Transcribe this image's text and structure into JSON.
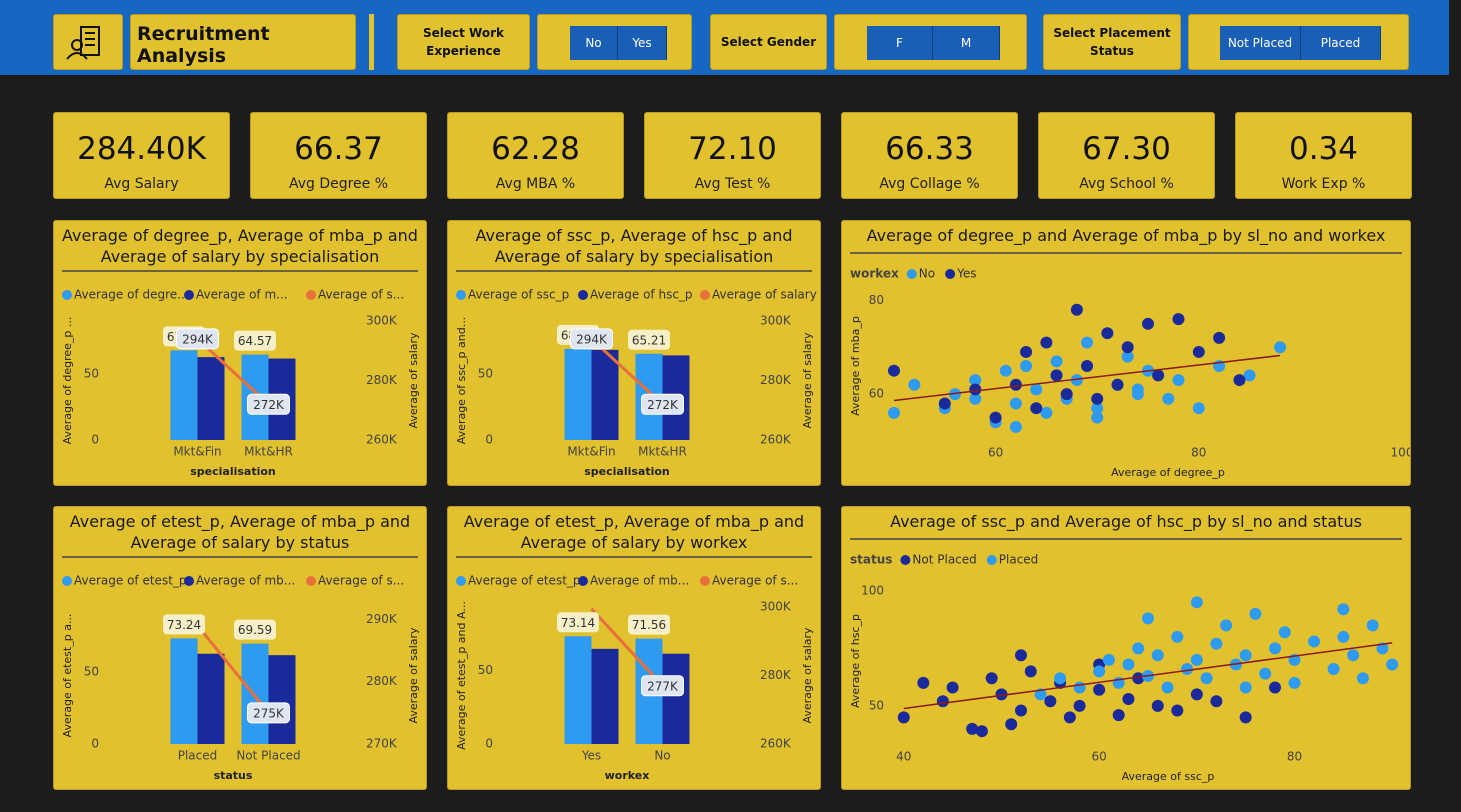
{
  "header": {
    "title": "Recruitment Analysis"
  },
  "slicers": [
    {
      "label": "Select Work Experience",
      "options": [
        "No",
        "Yes"
      ]
    },
    {
      "label": "Select Gender",
      "options": [
        "F",
        "M"
      ]
    },
    {
      "label": "Select Placement Status",
      "options": [
        "Not Placed",
        "Placed"
      ]
    }
  ],
  "kpis": [
    {
      "value": "284.40K",
      "label": "Avg Salary"
    },
    {
      "value": "66.37",
      "label": "Avg Degree %"
    },
    {
      "value": "62.28",
      "label": "Avg MBA %"
    },
    {
      "value": "72.10",
      "label": "Avg Test %"
    },
    {
      "value": "66.33",
      "label": "Avg Collage %"
    },
    {
      "value": "67.30",
      "label": "Avg School %"
    },
    {
      "value": "0.34",
      "label": "Work Exp %"
    }
  ],
  "chart_data": [
    {
      "type": "combo",
      "title": "Average of degree_p, Average of mba_p and Average of salary by specialisation",
      "categories": [
        "Mkt&Fin",
        "Mkt&HR"
      ],
      "x_label": "specialisation",
      "y_label": "Average of degree_p ...",
      "y2_label": "Average of salary",
      "series": [
        {
          "name": "Average of degre...",
          "color": "#2f9bf0",
          "values": [
            67.8,
            64.57
          ],
          "value_labels": [
            "67.80",
            "64.57"
          ]
        },
        {
          "name": "Average of m...",
          "color": "#1b2a9a",
          "values": [
            62.7,
            61.6
          ]
        },
        {
          "name": "Average of s...",
          "color": "#e8703a",
          "axis": "y2",
          "values": [
            294000,
            272000
          ],
          "value_labels": [
            "294K",
            "272K"
          ]
        }
      ],
      "ylim": [
        0,
        90
      ],
      "yticks": [
        0,
        50
      ],
      "y2lim": [
        260000,
        300000
      ],
      "y2ticks": [
        {
          "value": 260000,
          "label": "260K"
        },
        {
          "value": 280000,
          "label": "280K"
        },
        {
          "value": 300000,
          "label": "300K"
        }
      ]
    },
    {
      "type": "combo",
      "title": "Average of ssc_p, Average of hsc_p and Average of salary by specialisation",
      "categories": [
        "Mkt&Fin",
        "Mkt&HR"
      ],
      "x_label": "specialisation",
      "y_label": "Average of ssc_p and...",
      "y2_label": "Average of salary",
      "series": [
        {
          "name": "Average of ssc_p",
          "color": "#2f9bf0",
          "values": [
            68.96,
            65.21
          ],
          "value_labels": [
            "68.96",
            "65.21"
          ]
        },
        {
          "name": "Average of hsc_p",
          "color": "#1b2a9a",
          "values": [
            68.2,
            64.0
          ]
        },
        {
          "name": "Average of salary",
          "color": "#e8703a",
          "axis": "y2",
          "values": [
            294000,
            272000
          ],
          "value_labels": [
            "294K",
            "272K"
          ]
        }
      ],
      "ylim": [
        0,
        90
      ],
      "yticks": [
        0,
        50
      ],
      "y2lim": [
        260000,
        300000
      ],
      "y2ticks": [
        {
          "value": 260000,
          "label": "260K"
        },
        {
          "value": 280000,
          "label": "280K"
        },
        {
          "value": 300000,
          "label": "300K"
        }
      ]
    },
    {
      "type": "scatter",
      "title": "Average of degree_p and Average of mba_p by sl_no and workex",
      "legend_title": "workex",
      "x_label": "Average of degree_p",
      "y_label": "Average of mba_p",
      "trendline": true,
      "xlim": [
        50,
        100
      ],
      "xticks": [
        60,
        80,
        100
      ],
      "ylim": [
        50,
        82
      ],
      "yticks": [
        60,
        80
      ],
      "series": [
        {
          "name": "No",
          "color": "#2f9bf0",
          "x": [
            50,
            52,
            55,
            56,
            58,
            60,
            61,
            62,
            63,
            64,
            65,
            66,
            67,
            68,
            69,
            70,
            72,
            73,
            74,
            75,
            77,
            78,
            80,
            82,
            85,
            88,
            58,
            62,
            66,
            70,
            74
          ],
          "values": [
            56,
            62,
            57,
            60,
            63,
            54,
            65,
            58,
            66,
            61,
            56,
            67,
            59,
            63,
            71,
            57,
            62,
            68,
            60,
            65,
            59,
            63,
            57,
            66,
            64,
            70,
            59,
            53,
            64,
            55,
            61
          ]
        },
        {
          "name": "Yes",
          "color": "#1b2a9a",
          "x": [
            50,
            55,
            58,
            60,
            62,
            63,
            64,
            65,
            66,
            67,
            68,
            69,
            70,
            71,
            72,
            73,
            75,
            76,
            78,
            80,
            82,
            84
          ],
          "values": [
            65,
            58,
            61,
            55,
            62,
            69,
            57,
            71,
            64,
            60,
            78,
            66,
            59,
            73,
            62,
            70,
            75,
            64,
            76,
            69,
            72,
            63
          ]
        }
      ]
    },
    {
      "type": "combo",
      "title": "Average of etest_p, Average of mba_p and Average of salary by status",
      "categories": [
        "Placed",
        "Not Placed"
      ],
      "x_label": "status",
      "y_label": "Average of etest_p a...",
      "y2_label": "Average of salary",
      "series": [
        {
          "name": "Average of etest_p",
          "color": "#2f9bf0",
          "values": [
            73.24,
            69.59
          ],
          "value_labels": [
            "73.24",
            "69.59"
          ]
        },
        {
          "name": "Average of mb...",
          "color": "#1b2a9a",
          "values": [
            62.6,
            61.6
          ]
        },
        {
          "name": "Average of s...",
          "color": "#e8703a",
          "axis": "y2",
          "values": [
            289000,
            275000
          ],
          "value_labels": [
            null,
            "275K"
          ]
        }
      ],
      "ylim": [
        0,
        95
      ],
      "yticks": [
        0,
        50
      ],
      "y2lim": [
        270000,
        292000
      ],
      "y2ticks": [
        {
          "value": 270000,
          "label": "270K"
        },
        {
          "value": 280000,
          "label": "280K"
        },
        {
          "value": 290000,
          "label": "290K"
        }
      ]
    },
    {
      "type": "combo",
      "title": "Average of etest_p, Average of mba_p and Average of salary by workex",
      "categories": [
        "Yes",
        "No"
      ],
      "x_label": "workex",
      "y_label": "Average of etest_p and A...",
      "y2_label": "Average of salary",
      "series": [
        {
          "name": "Average of etest_p",
          "color": "#2f9bf0",
          "values": [
            73.14,
            71.56
          ],
          "value_labels": [
            "73.14",
            "71.56"
          ]
        },
        {
          "name": "Average of mb...",
          "color": "#1b2a9a",
          "values": [
            64.6,
            61.3
          ]
        },
        {
          "name": "Average of s...",
          "color": "#e8703a",
          "axis": "y2",
          "values": [
            299500,
            277000
          ],
          "value_labels": [
            null,
            "277K"
          ]
        }
      ],
      "ylim": [
        0,
        93
      ],
      "yticks": [
        0,
        50
      ],
      "y2lim": [
        260000,
        300000
      ],
      "y2ticks": [
        {
          "value": 260000,
          "label": "260K"
        },
        {
          "value": 280000,
          "label": "280K"
        },
        {
          "value": 300000,
          "label": "300K"
        }
      ]
    },
    {
      "type": "scatter",
      "title": "Average of ssc_p and Average of hsc_p by sl_no and status",
      "legend_title": "status",
      "x_label": "Average of ssc_p",
      "y_label": "Average of hsc_p",
      "trendline": true,
      "xlim": [
        39,
        91
      ],
      "xticks": [
        40,
        60,
        80
      ],
      "ylim": [
        33,
        106
      ],
      "yticks": [
        50,
        100
      ],
      "series": [
        {
          "name": "Not Placed",
          "color": "#1b2a9a",
          "x": [
            40,
            42,
            44,
            45,
            47,
            49,
            50,
            51,
            52,
            53,
            55,
            56,
            57,
            58,
            60,
            62,
            63,
            64,
            66,
            68,
            70,
            72,
            75,
            78,
            52,
            48,
            60
          ],
          "values": [
            45,
            60,
            52,
            58,
            40,
            62,
            55,
            42,
            48,
            65,
            52,
            60,
            45,
            50,
            57,
            46,
            53,
            62,
            50,
            48,
            55,
            52,
            45,
            58,
            72,
            39,
            68
          ]
        },
        {
          "name": "Placed",
          "color": "#2f9bf0",
          "x": [
            54,
            56,
            58,
            60,
            61,
            62,
            63,
            64,
            65,
            66,
            67,
            68,
            69,
            70,
            71,
            72,
            73,
            74,
            75,
            76,
            77,
            78,
            79,
            80,
            82,
            84,
            85,
            86,
            87,
            88,
            89,
            90,
            65,
            70,
            75,
            80,
            85
          ],
          "values": [
            55,
            62,
            58,
            65,
            70,
            60,
            68,
            75,
            63,
            72,
            58,
            80,
            66,
            70,
            62,
            77,
            85,
            68,
            72,
            90,
            64,
            75,
            82,
            70,
            78,
            66,
            80,
            72,
            62,
            85,
            75,
            68,
            88,
            95,
            58,
            60,
            92
          ]
        }
      ]
    }
  ]
}
